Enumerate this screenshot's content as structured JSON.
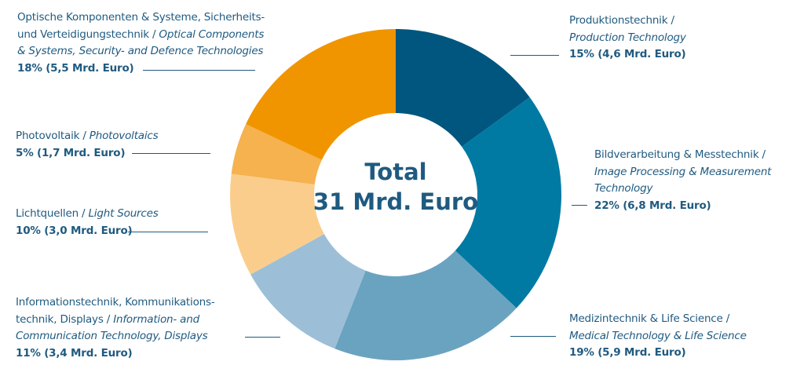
{
  "chart_data": {
    "type": "pie",
    "donut": true,
    "center_title": "Total",
    "center_value": "31 Mrd. Euro",
    "start": "top",
    "direction": "clockwise",
    "slices": [
      {
        "de": "Produktionstechnik /",
        "en": "Production Technology",
        "value_label": "15% (4,6 Mrd. Euro)",
        "percent": 15,
        "value": 4.6,
        "color": "#00567f"
      },
      {
        "de": "Bildverarbeitung & Messtechnik /",
        "en": "Image Processing & Measurement Technology",
        "value_label": "22% (6,8 Mrd. Euro)",
        "percent": 22,
        "value": 6.8,
        "color": "#007aa3"
      },
      {
        "de": "Medizintechnik & Life Science /",
        "en": "Medical Technology & Life Science",
        "value_label": "19% (5,9 Mrd. Euro)",
        "percent": 19,
        "value": 5.9,
        "color": "#6aa3c0"
      },
      {
        "de": "Informationstechnik, Kommunikations-technik, Displays /",
        "en": "Information- and Communication Technology, Displays",
        "value_label": "11% (3,4 Mrd. Euro)",
        "percent": 11,
        "value": 3.4,
        "color": "#9cbfd7"
      },
      {
        "de": "Lichtquellen /",
        "en": "Light Sources",
        "value_label": "10% (3,0 Mrd. Euro)",
        "percent": 10,
        "value": 3.0,
        "color": "#fbcd8d"
      },
      {
        "de": "Photovoltaik /",
        "en": "Photovoltaics",
        "value_label": "5% (1,7 Mrd. Euro)",
        "percent": 5,
        "value": 1.7,
        "color": "#f5b24f"
      },
      {
        "de": "Optische Komponenten & Systeme, Sicherheits- und Verteidigungstechnik /",
        "en": "Optical Components & Systems, Security- and Defence Technologies",
        "value_label": "18% (5,5 Mrd. Euro)",
        "percent": 18,
        "value": 5.5,
        "color": "#f09500"
      }
    ]
  },
  "labels": {
    "prod": {
      "l1": "Produktionstechnik /",
      "l2": "Production Technology",
      "val": "15% (4,6 Mrd. Euro)"
    },
    "bild": {
      "l1": "Bildverarbeitung & Messtechnik /",
      "l2": "Image Processing & Measurement",
      "l3": "Technology",
      "val": "22% (6,8 Mrd. Euro)"
    },
    "med": {
      "l1": "Medizintechnik & Life Science /",
      "l2": "Medical Technology & Life Science",
      "val": "19% (5,9 Mrd. Euro)"
    },
    "info": {
      "l1": "Informationstechnik, Kommunikations-",
      "l2a": "technik, Displays / ",
      "l2b": "Information- and",
      "l3": "Communication Technology, Displays",
      "val": "11% (3,4 Mrd. Euro)"
    },
    "licht": {
      "l1a": "Lichtquellen / ",
      "l1b": "Light Sources",
      "val": "10% (3,0 Mrd. Euro)"
    },
    "photo": {
      "l1a": "Photovoltaik / ",
      "l1b": "Photovoltaics",
      "val": "5% (1,7 Mrd. Euro)"
    },
    "opt": {
      "l1": "Optische Komponenten & Systeme, Sicherheits-",
      "l2a": "und Verteidigungstechnik / ",
      "l2b": "Optical Components",
      "l3": "& Systems, Security- and Defence Technologies",
      "val": "18% (5,5 Mrd. Euro)"
    }
  }
}
